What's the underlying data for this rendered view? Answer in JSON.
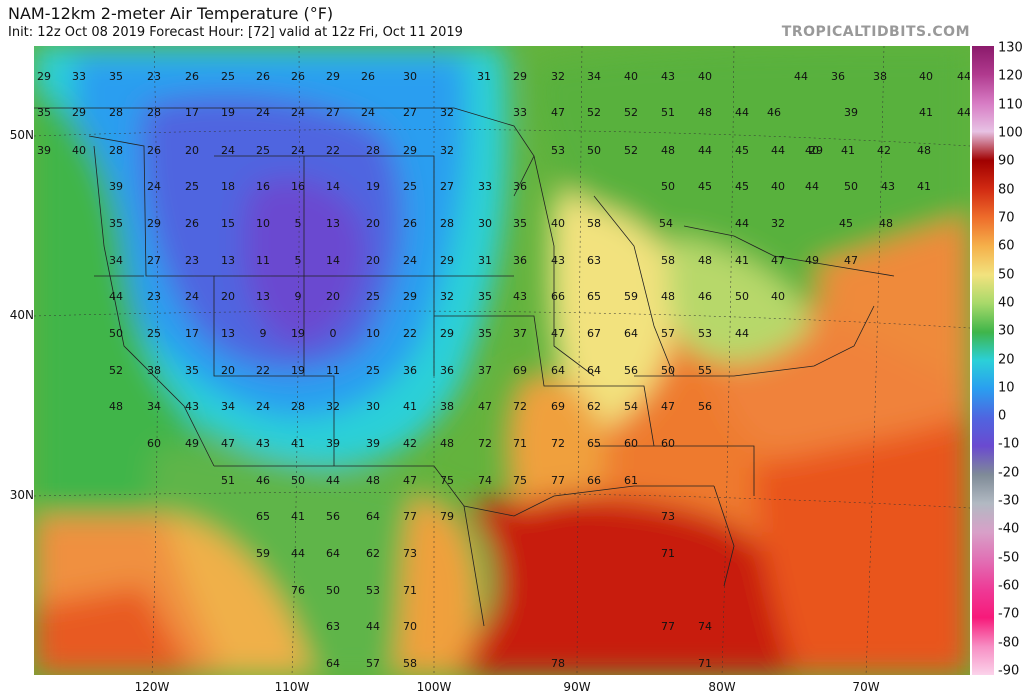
{
  "title": "NAM-12km 2-meter Air Temperature (°F)",
  "subtitle": "Init: 12z Oct 08 2019   Forecast Hour: [72]   valid at 12z Fri, Oct 11 2019",
  "brand": "TROPICALTIDBITS.COM",
  "longitude_labels": [
    "120W",
    "110W",
    "100W",
    "90W",
    "80W",
    "70W"
  ],
  "latitude_labels": [
    "50N",
    "40N",
    "30N"
  ],
  "colorbar": {
    "labels": [
      "130",
      "120",
      "110",
      "100",
      "90",
      "80",
      "70",
      "60",
      "50",
      "40",
      "30",
      "20",
      "10",
      "0",
      "-10",
      "-20",
      "-30",
      "-40",
      "-50",
      "-60",
      "-70",
      "-80",
      "-90"
    ],
    "colors": [
      "#8b1a6b",
      "#b03a8e",
      "#d77cc4",
      "#e7c2e4",
      "#a00000",
      "#d12a12",
      "#ee6d2b",
      "#f5b04a",
      "#f2e27e",
      "#a8d96a",
      "#3fb54a",
      "#2bd0d8",
      "#2a9ef0",
      "#4f65e0",
      "#6a4ad0",
      "#7f8b97",
      "#b1b9c2",
      "#d8a0c8",
      "#e16fb4",
      "#ee3a96",
      "#f71a7a",
      "#f78fc4",
      "#fbd3ea"
    ]
  },
  "stations": [
    {
      "v": "29"
    },
    {
      "v": "33"
    },
    {
      "v": "35"
    },
    {
      "v": "23"
    },
    {
      "v": "26"
    },
    {
      "v": "25"
    },
    {
      "v": "26"
    },
    {
      "v": "26"
    },
    {
      "v": "29"
    },
    {
      "v": "26"
    },
    {
      "v": "30"
    },
    {
      "v": "31"
    },
    {
      "v": "29"
    },
    {
      "v": "32"
    },
    {
      "v": "34"
    },
    {
      "v": "40"
    },
    {
      "v": "43"
    },
    {
      "v": "40"
    },
    {
      "v": "44"
    },
    {
      "v": "36"
    },
    {
      "v": "38"
    },
    {
      "v": "40"
    },
    {
      "v": "44"
    },
    {
      "v": "35"
    },
    {
      "v": "29"
    },
    {
      "v": "28"
    },
    {
      "v": "28"
    },
    {
      "v": "17"
    },
    {
      "v": "19"
    },
    {
      "v": "24"
    },
    {
      "v": "24"
    },
    {
      "v": "27"
    },
    {
      "v": "24"
    },
    {
      "v": "27"
    },
    {
      "v": "32"
    },
    {
      "v": "33"
    },
    {
      "v": "47"
    },
    {
      "v": "52"
    },
    {
      "v": "52"
    },
    {
      "v": "51"
    },
    {
      "v": "48"
    },
    {
      "v": "44"
    },
    {
      "v": "46"
    },
    {
      "v": "39"
    },
    {
      "v": "41"
    },
    {
      "v": "44"
    },
    {
      "v": "39"
    },
    {
      "v": "40"
    },
    {
      "v": "28"
    },
    {
      "v": "26"
    },
    {
      "v": "20"
    },
    {
      "v": "24"
    },
    {
      "v": "25"
    },
    {
      "v": "24"
    },
    {
      "v": "22"
    },
    {
      "v": "28"
    },
    {
      "v": "29"
    },
    {
      "v": "32"
    },
    {
      "v": "53"
    },
    {
      "v": "50"
    },
    {
      "v": "52"
    },
    {
      "v": "48"
    },
    {
      "v": "44"
    },
    {
      "v": "45"
    },
    {
      "v": "44"
    },
    {
      "v": "40"
    },
    {
      "v": "29"
    },
    {
      "v": "41"
    },
    {
      "v": "42"
    },
    {
      "v": "48"
    },
    {
      "v": "39"
    },
    {
      "v": "24"
    },
    {
      "v": "25"
    },
    {
      "v": "18"
    },
    {
      "v": "16"
    },
    {
      "v": "16"
    },
    {
      "v": "14"
    },
    {
      "v": "19"
    },
    {
      "v": "25"
    },
    {
      "v": "27"
    },
    {
      "v": "33"
    },
    {
      "v": "36"
    },
    {
      "v": "50"
    },
    {
      "v": "45"
    },
    {
      "v": "45"
    },
    {
      "v": "40"
    },
    {
      "v": "44"
    },
    {
      "v": "50"
    },
    {
      "v": "43"
    },
    {
      "v": "41"
    },
    {
      "v": "35"
    },
    {
      "v": "29"
    },
    {
      "v": "26"
    },
    {
      "v": "15"
    },
    {
      "v": "10"
    },
    {
      "v": "5"
    },
    {
      "v": "13"
    },
    {
      "v": "20"
    },
    {
      "v": "26"
    },
    {
      "v": "28"
    },
    {
      "v": "30"
    },
    {
      "v": "35"
    },
    {
      "v": "40"
    },
    {
      "v": "58"
    },
    {
      "v": "54"
    },
    {
      "v": "44"
    },
    {
      "v": "32"
    },
    {
      "v": "45"
    },
    {
      "v": "48"
    },
    {
      "v": "34"
    },
    {
      "v": "27"
    },
    {
      "v": "23"
    },
    {
      "v": "13"
    },
    {
      "v": "11"
    },
    {
      "v": "5"
    },
    {
      "v": "14"
    },
    {
      "v": "20"
    },
    {
      "v": "24"
    },
    {
      "v": "29"
    },
    {
      "v": "31"
    },
    {
      "v": "36"
    },
    {
      "v": "43"
    },
    {
      "v": "63"
    },
    {
      "v": "58"
    },
    {
      "v": "48"
    },
    {
      "v": "41"
    },
    {
      "v": "47"
    },
    {
      "v": "49"
    },
    {
      "v": "47"
    },
    {
      "v": "44"
    },
    {
      "v": "23"
    },
    {
      "v": "24"
    },
    {
      "v": "20"
    },
    {
      "v": "13"
    },
    {
      "v": "9"
    },
    {
      "v": "20"
    },
    {
      "v": "25"
    },
    {
      "v": "29"
    },
    {
      "v": "32"
    },
    {
      "v": "35"
    },
    {
      "v": "43"
    },
    {
      "v": "66"
    },
    {
      "v": "65"
    },
    {
      "v": "59"
    },
    {
      "v": "48"
    },
    {
      "v": "46"
    },
    {
      "v": "50"
    },
    {
      "v": "40"
    },
    {
      "v": "50"
    },
    {
      "v": "25"
    },
    {
      "v": "17"
    },
    {
      "v": "13"
    },
    {
      "v": "9"
    },
    {
      "v": "19"
    },
    {
      "v": "0"
    },
    {
      "v": "10"
    },
    {
      "v": "22"
    },
    {
      "v": "29"
    },
    {
      "v": "35"
    },
    {
      "v": "37"
    },
    {
      "v": "47"
    },
    {
      "v": "67"
    },
    {
      "v": "64"
    },
    {
      "v": "57"
    },
    {
      "v": "53"
    },
    {
      "v": "44"
    },
    {
      "v": "52"
    },
    {
      "v": "38"
    },
    {
      "v": "35"
    },
    {
      "v": "20"
    },
    {
      "v": "22"
    },
    {
      "v": "19"
    },
    {
      "v": "11"
    },
    {
      "v": "25"
    },
    {
      "v": "36"
    },
    {
      "v": "36"
    },
    {
      "v": "37"
    },
    {
      "v": "69"
    },
    {
      "v": "64"
    },
    {
      "v": "64"
    },
    {
      "v": "56"
    },
    {
      "v": "50"
    },
    {
      "v": "55"
    },
    {
      "v": "48"
    },
    {
      "v": "34"
    },
    {
      "v": "43"
    },
    {
      "v": "34"
    },
    {
      "v": "24"
    },
    {
      "v": "28"
    },
    {
      "v": "32"
    },
    {
      "v": "30"
    },
    {
      "v": "41"
    },
    {
      "v": "38"
    },
    {
      "v": "47"
    },
    {
      "v": "72"
    },
    {
      "v": "69"
    },
    {
      "v": "62"
    },
    {
      "v": "54"
    },
    {
      "v": "47"
    },
    {
      "v": "56"
    },
    {
      "v": "60"
    },
    {
      "v": "49"
    },
    {
      "v": "47"
    },
    {
      "v": "43"
    },
    {
      "v": "41"
    },
    {
      "v": "39"
    },
    {
      "v": "39"
    },
    {
      "v": "42"
    },
    {
      "v": "48"
    },
    {
      "v": "72"
    },
    {
      "v": "71"
    },
    {
      "v": "72"
    },
    {
      "v": "65"
    },
    {
      "v": "60"
    },
    {
      "v": "60"
    },
    {
      "v": "51"
    },
    {
      "v": "46"
    },
    {
      "v": "50"
    },
    {
      "v": "44"
    },
    {
      "v": "48"
    },
    {
      "v": "47"
    },
    {
      "v": "75"
    },
    {
      "v": "74"
    },
    {
      "v": "75"
    },
    {
      "v": "77"
    },
    {
      "v": "66"
    },
    {
      "v": "61"
    },
    {
      "v": "65"
    },
    {
      "v": "41"
    },
    {
      "v": "56"
    },
    {
      "v": "64"
    },
    {
      "v": "77"
    },
    {
      "v": "79"
    },
    {
      "v": "73"
    },
    {
      "v": "59"
    },
    {
      "v": "44"
    },
    {
      "v": "64"
    },
    {
      "v": "62"
    },
    {
      "v": "73"
    },
    {
      "v": "71"
    },
    {
      "v": "76"
    },
    {
      "v": "50"
    },
    {
      "v": "53"
    },
    {
      "v": "71"
    },
    {
      "v": "63"
    },
    {
      "v": "44"
    },
    {
      "v": "70"
    },
    {
      "v": "77"
    },
    {
      "v": "74"
    },
    {
      "v": "64"
    },
    {
      "v": "57"
    },
    {
      "v": "58"
    },
    {
      "v": "78"
    },
    {
      "v": "71"
    }
  ]
}
